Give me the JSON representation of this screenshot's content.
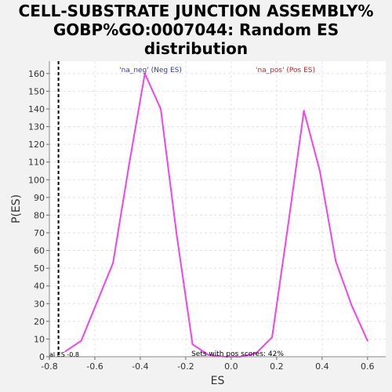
{
  "chart_data": {
    "type": "line",
    "title_lines": [
      "CELL-SUBSTRATE JUNCTION ASSEMBLY%",
      "GOBP%GO:0007044: Random ES",
      "distribution"
    ],
    "xlabel": "ES",
    "ylabel": "P(ES)",
    "xlim": [
      -0.8,
      0.68
    ],
    "ylim": [
      0,
      167
    ],
    "xticks": [
      -0.8,
      -0.6,
      -0.4,
      -0.2,
      0.0,
      0.2,
      0.4,
      0.6
    ],
    "xtick_labels": [
      "-0.8",
      "-0.6",
      "-0.4",
      "-0.2",
      "0.0",
      "0.2",
      "0.4",
      "0.6"
    ],
    "yticks": [
      0,
      10,
      20,
      30,
      40,
      50,
      60,
      70,
      80,
      90,
      100,
      110,
      120,
      130,
      140,
      150,
      160
    ],
    "ytick_labels": [
      "0",
      "10",
      "20",
      "30",
      "40",
      "50",
      "60",
      "70",
      "80",
      "90",
      "100",
      "110",
      "120",
      "130",
      "140",
      "150",
      "160"
    ],
    "grid": true,
    "series": [
      {
        "name": "P(ES)",
        "color": "#ee44ee",
        "x": [
          -0.73,
          -0.66,
          -0.59,
          -0.52,
          -0.45,
          -0.38,
          -0.31,
          -0.24,
          -0.17,
          -0.1,
          -0.03,
          0.04,
          0.11,
          0.18,
          0.25,
          0.32,
          0.39,
          0.46,
          0.53,
          0.6
        ],
        "y": [
          3,
          9,
          31,
          53,
          108,
          160,
          140,
          69,
          7,
          1,
          0,
          0,
          2,
          11,
          74,
          139,
          105,
          54,
          29,
          9
        ]
      }
    ],
    "actual_es": -0.76,
    "actual_es_color": "#000000",
    "annotations": {
      "neg_label": "'na_neg' (Neg ES)",
      "neg_color": "#3333cc",
      "pos_label": "'na_pos' (Pos ES)",
      "pos_color": "#cc2222",
      "actual_es_label": "al ES -0.8",
      "pos_scores_label": "Sets with pos scores: 42%"
    }
  }
}
